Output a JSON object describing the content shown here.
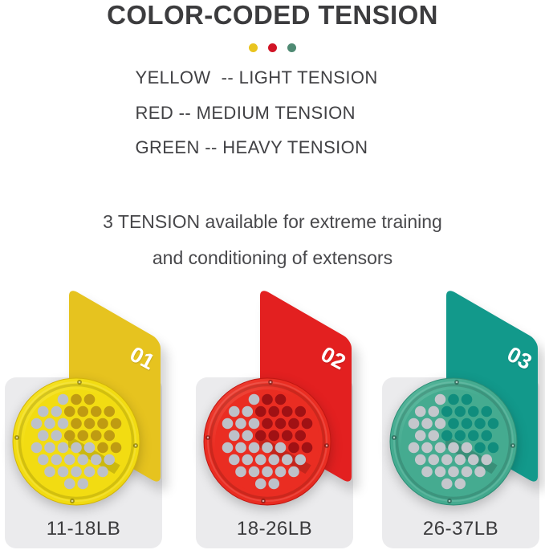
{
  "header": {
    "title": "COLOR-CODED TENSION",
    "dots": [
      {
        "name": "yellow",
        "color": "#e9c41f"
      },
      {
        "name": "red",
        "color": "#d11426"
      },
      {
        "name": "green",
        "color": "#4f8a73"
      }
    ]
  },
  "legend": {
    "lines": [
      "YELLOW  -- LIGHT TENSION",
      "RED -- MEDIUM TENSION",
      "GREEN -- HEAVY TENSION"
    ]
  },
  "description": {
    "line1": "3 TENSION available for extreme training",
    "line2": "and conditioning of extensors"
  },
  "panel_bg": "#ebebed",
  "products": [
    {
      "number": "01",
      "weight": "11-18LB",
      "color_name": "yellow",
      "card_color": "#e6c31f",
      "disc_color": "#f2dc12",
      "disc_light": "#f8ea42",
      "disc_dark": "#d2b409",
      "hole_dark": "#bf9b12",
      "hole_gray": "#bdc1c9"
    },
    {
      "number": "02",
      "weight": "18-26LB",
      "color_name": "red",
      "card_color": "#e32020",
      "disc_color": "#ea2d22",
      "disc_light": "#f25a4b",
      "disc_dark": "#c01712",
      "hole_dark": "#a01114",
      "hole_gray": "#bdc1c9"
    },
    {
      "number": "03",
      "weight": "26-37LB",
      "color_name": "green",
      "card_color": "#12998b",
      "disc_color": "#45ab90",
      "disc_light": "#6cc2a8",
      "disc_dark": "#2b8e76",
      "hole_dark": "#108d7d",
      "hole_gray": "#c4c7cc"
    }
  ]
}
